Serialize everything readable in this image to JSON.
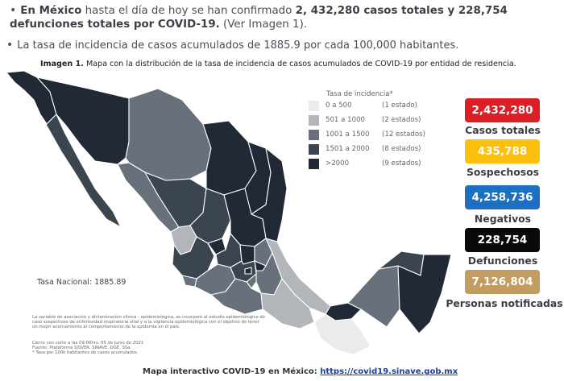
{
  "bullets": {
    "b1_prefix": "En México",
    "b1_mid": " hasta el día de hoy se han confirmado ",
    "b1_bold": "2, 432,280 casos totales y 228,754 defunciones totales por COVID-19.",
    "b1_suffix": " (Ver Imagen 1).",
    "b2": "La tasa de incidencia de casos acumulados de 1885.9 por cada 100,000 habitantes."
  },
  "caption": {
    "label": "Imagen 1.",
    "text": " Mapa con la distribución de la tasa de incidencia de casos acumulados de COVID-19 por entidad de residencia."
  },
  "legend": {
    "title": "Tasa de incidencia*",
    "rows": [
      {
        "range": "0 a  500",
        "count": "(1 estado)",
        "color": "#ebebeb"
      },
      {
        "range": "501 a  1000",
        "count": "(2 estados)",
        "color": "#b2b5ba"
      },
      {
        "range": "1001 a  1500",
        "count": "(12 estados)",
        "color": "#67707b"
      },
      {
        "range": "1501 a  2000",
        "count": "(8 estados)",
        "color": "#3b4550"
      },
      {
        "range": ">2000",
        "count": "(9 estados)",
        "color": "#212936"
      }
    ]
  },
  "stats": [
    {
      "value": "2,432,280",
      "label": "Casos totales",
      "color": "#dc1f26"
    },
    {
      "value": "435,788",
      "label": "Sospechosos",
      "color": "#fcbf0e"
    },
    {
      "value": "4,258,736",
      "label": "Negativos",
      "color": "#1c6fc1"
    },
    {
      "value": "228,754",
      "label": "Defunciones",
      "color": "#0a0a0a"
    },
    {
      "value": "7,126,804",
      "label": "Personas notificadas",
      "color": "#c39c62"
    }
  ],
  "tasa_nacional": "Tasa Nacional: 1885.89",
  "fine_print": "La variable de asociación y dictaminación clínica - epidemiológica, se incorporó al estudio epidemiológico de caso sospechoso de enfermedad respiratoria viral y a la vigilancia epidemiológica con el objetivo de tener un mejor acercamiento al comportamiento de la epidemia en el país.",
  "fine_print_2": "Cierre con corte a las 09:00hrs. 05 de junio de 2021\nFuente: Plataforma SISVER. SINAVE. DGE. SSa.\n* Tasa por 100k habitantes de casos acumulados.",
  "footer": {
    "text": "Mapa interactivo COVID-19 en México: ",
    "link": "https://covid19.sinave.gob.mx"
  }
}
